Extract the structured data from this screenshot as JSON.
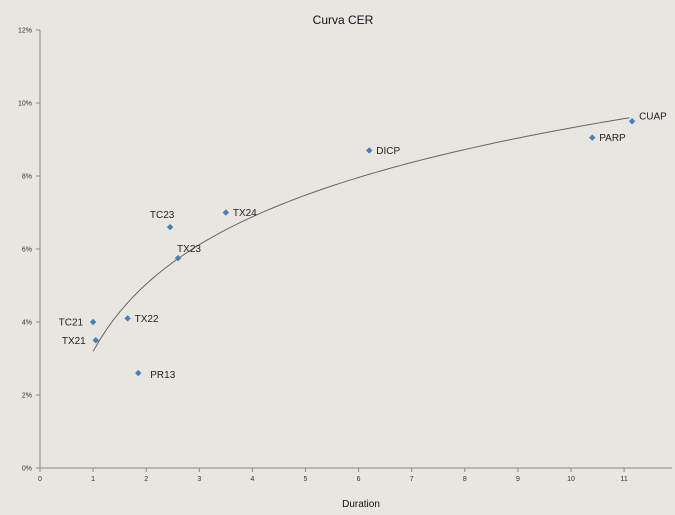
{
  "chart_data": {
    "type": "scatter",
    "title": "Curva CER",
    "xlabel": "Duration",
    "ylabel": "",
    "xlim": [
      0,
      12
    ],
    "ylim": [
      0,
      12
    ],
    "x_ticks": [
      "0",
      "1",
      "2",
      "3",
      "4",
      "5",
      "6",
      "7",
      "8",
      "9",
      "10",
      "11"
    ],
    "y_ticks": [
      "0%",
      "2%",
      "4%",
      "6%",
      "8%",
      "10%",
      "12%"
    ],
    "grid": false,
    "marker_color": "#4a7ebb",
    "trendline": {
      "type": "logarithmic",
      "color": "#666666",
      "x_from": 1.0,
      "x_to": 11.1
    },
    "points": [
      {
        "label": "TC21",
        "x": 1.0,
        "y": 4.0
      },
      {
        "label": "TX21",
        "x": 1.05,
        "y": 3.5
      },
      {
        "label": "TX22",
        "x": 1.65,
        "y": 4.1
      },
      {
        "label": "PR13",
        "x": 1.85,
        "y": 2.6
      },
      {
        "label": "TC23",
        "x": 2.45,
        "y": 6.6
      },
      {
        "label": "TX23",
        "x": 2.6,
        "y": 5.75
      },
      {
        "label": "TX24",
        "x": 3.5,
        "y": 7.0
      },
      {
        "label": "DICP",
        "x": 6.2,
        "y": 8.7
      },
      {
        "label": "PARP",
        "x": 10.4,
        "y": 9.05
      },
      {
        "label": "CUAP",
        "x": 11.15,
        "y": 9.5
      }
    ]
  }
}
